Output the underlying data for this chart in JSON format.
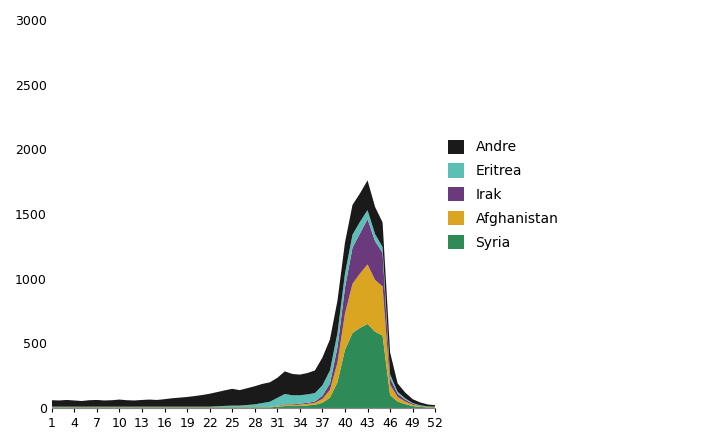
{
  "weeks": [
    1,
    2,
    3,
    4,
    5,
    6,
    7,
    8,
    9,
    10,
    11,
    12,
    13,
    14,
    15,
    16,
    17,
    18,
    19,
    20,
    21,
    22,
    23,
    24,
    25,
    26,
    27,
    28,
    29,
    30,
    31,
    32,
    33,
    34,
    35,
    36,
    37,
    38,
    39,
    40,
    41,
    42,
    43,
    44,
    45,
    46,
    47,
    48,
    49,
    50,
    51,
    52
  ],
  "Syria": [
    5,
    5,
    5,
    5,
    5,
    5,
    5,
    5,
    5,
    5,
    5,
    5,
    5,
    5,
    5,
    5,
    5,
    5,
    5,
    5,
    5,
    5,
    5,
    5,
    5,
    5,
    5,
    5,
    5,
    5,
    10,
    15,
    15,
    15,
    20,
    25,
    40,
    80,
    200,
    450,
    580,
    620,
    650,
    590,
    560,
    100,
    50,
    30,
    15,
    8,
    5,
    5
  ],
  "Afghanistan": [
    2,
    2,
    2,
    2,
    2,
    2,
    2,
    2,
    2,
    2,
    2,
    2,
    2,
    2,
    2,
    2,
    2,
    2,
    2,
    2,
    2,
    2,
    2,
    2,
    2,
    2,
    2,
    2,
    2,
    2,
    5,
    8,
    8,
    10,
    12,
    15,
    30,
    60,
    150,
    280,
    380,
    420,
    460,
    400,
    380,
    80,
    35,
    20,
    10,
    5,
    3,
    2
  ],
  "Irak": [
    1,
    1,
    1,
    1,
    1,
    1,
    1,
    1,
    1,
    1,
    1,
    1,
    1,
    1,
    1,
    1,
    1,
    1,
    1,
    1,
    1,
    1,
    1,
    1,
    1,
    1,
    1,
    1,
    1,
    1,
    3,
    5,
    5,
    8,
    8,
    10,
    25,
    50,
    120,
    200,
    280,
    310,
    350,
    300,
    260,
    50,
    25,
    15,
    8,
    4,
    2,
    1
  ],
  "Eritrea": [
    2,
    2,
    2,
    2,
    2,
    2,
    2,
    2,
    2,
    2,
    2,
    2,
    2,
    2,
    2,
    2,
    2,
    2,
    2,
    2,
    2,
    2,
    5,
    8,
    10,
    10,
    15,
    20,
    30,
    40,
    60,
    80,
    70,
    65,
    65,
    65,
    80,
    100,
    110,
    110,
    100,
    90,
    70,
    55,
    45,
    30,
    15,
    10,
    5,
    4,
    2,
    2
  ],
  "Andre": [
    50,
    48,
    52,
    48,
    44,
    50,
    52,
    48,
    50,
    55,
    50,
    48,
    52,
    55,
    52,
    58,
    65,
    70,
    75,
    82,
    90,
    100,
    110,
    120,
    130,
    120,
    130,
    140,
    148,
    150,
    155,
    175,
    165,
    160,
    165,
    175,
    215,
    240,
    250,
    240,
    230,
    220,
    230,
    210,
    190,
    170,
    65,
    45,
    30,
    22,
    15,
    12
  ]
}
